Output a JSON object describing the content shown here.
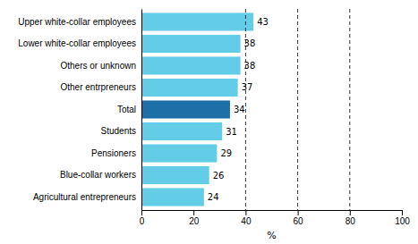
{
  "chart_data": {
    "type": "bar",
    "orientation": "horizontal",
    "categories": [
      "Agricultural entrepreneurs",
      "Blue-collar workers",
      "Pensioners",
      "Students",
      "Total",
      "Other entrpreneurs",
      "Others or unknown",
      "Lower white-collar employees",
      "Upper white-collar employees"
    ],
    "values": [
      24,
      26,
      29,
      31,
      34,
      37,
      38,
      38,
      43
    ],
    "colors": [
      "#63cde8",
      "#63cde8",
      "#63cde8",
      "#63cde8",
      "#1e6fa8",
      "#63cde8",
      "#63cde8",
      "#63cde8",
      "#63cde8"
    ],
    "xlabel": "%",
    "xlim": [
      0,
      100
    ],
    "xticks": [
      0,
      20,
      40,
      60,
      80,
      100
    ],
    "reference_lines": [
      40,
      60,
      80
    ],
    "data_labels": true,
    "grid": false
  }
}
